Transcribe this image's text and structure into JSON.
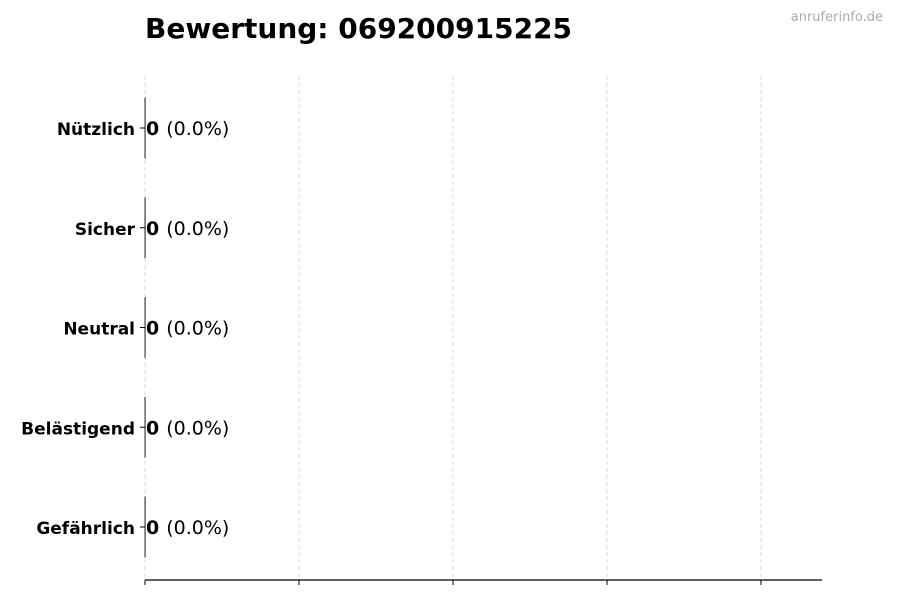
{
  "chart_data": {
    "type": "bar",
    "orientation": "horizontal",
    "title": "Bewertung: 069200915225",
    "watermark": "anruferinfo.de",
    "categories": [
      "Nützlich",
      "Sicher",
      "Neutral",
      "Belästigend",
      "Gefährlich"
    ],
    "values": [
      0,
      0,
      0,
      0,
      0
    ],
    "percent_labels": [
      "(0.0%)",
      "(0.0%)",
      "(0.0%)",
      "(0.0%)",
      "(0.0%)"
    ],
    "xlabel": "",
    "ylabel": "",
    "x_tick_labels_shown": false,
    "grid": "vertical dashed",
    "colors": {
      "grid": "#d9d9d9",
      "axis": "#000000",
      "bar_edge": "#000000",
      "watermark": "#aaaaaa"
    }
  }
}
